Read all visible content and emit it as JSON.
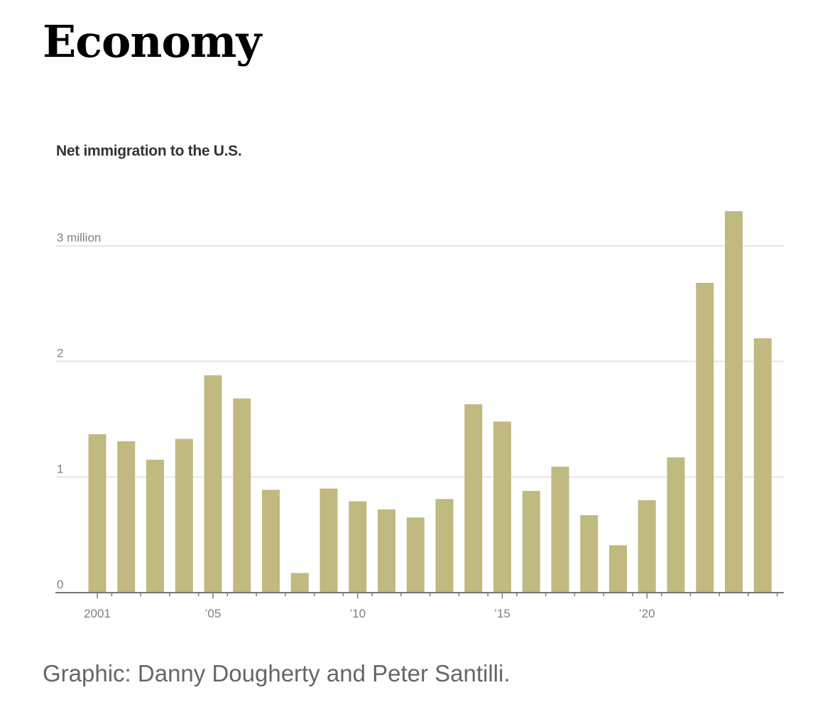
{
  "section": {
    "title": "Economy"
  },
  "chart_data": {
    "type": "bar",
    "title": "Net immigration to the U.S.",
    "xlabel": "",
    "ylabel": "",
    "ylim": [
      0,
      3.3
    ],
    "grid": true,
    "bar_color": "#c0b980",
    "categories": [
      2001,
      2002,
      2003,
      2004,
      2005,
      2006,
      2007,
      2008,
      2009,
      2010,
      2011,
      2012,
      2013,
      2014,
      2015,
      2016,
      2017,
      2018,
      2019,
      2020,
      2021,
      2022,
      2023,
      2024
    ],
    "values": [
      1.37,
      1.31,
      1.15,
      1.33,
      1.88,
      1.68,
      0.89,
      0.17,
      0.9,
      0.79,
      0.72,
      0.65,
      0.81,
      1.63,
      1.48,
      0.88,
      1.09,
      0.67,
      0.41,
      0.8,
      1.17,
      2.68,
      3.3,
      2.2
    ],
    "y_ticks": [
      {
        "value": 3,
        "label": "3 million"
      },
      {
        "value": 2,
        "label": "2"
      },
      {
        "value": 1,
        "label": "1"
      },
      {
        "value": 0,
        "label": "0"
      }
    ],
    "x_ticks": [
      {
        "value": 2001,
        "label": "2001"
      },
      {
        "value": 2005,
        "label": "’05"
      },
      {
        "value": 2010,
        "label": "’10"
      },
      {
        "value": 2015,
        "label": "’15"
      },
      {
        "value": 2020,
        "label": "’20"
      }
    ]
  },
  "credit": "Graphic: Danny Dougherty and Peter Santilli."
}
